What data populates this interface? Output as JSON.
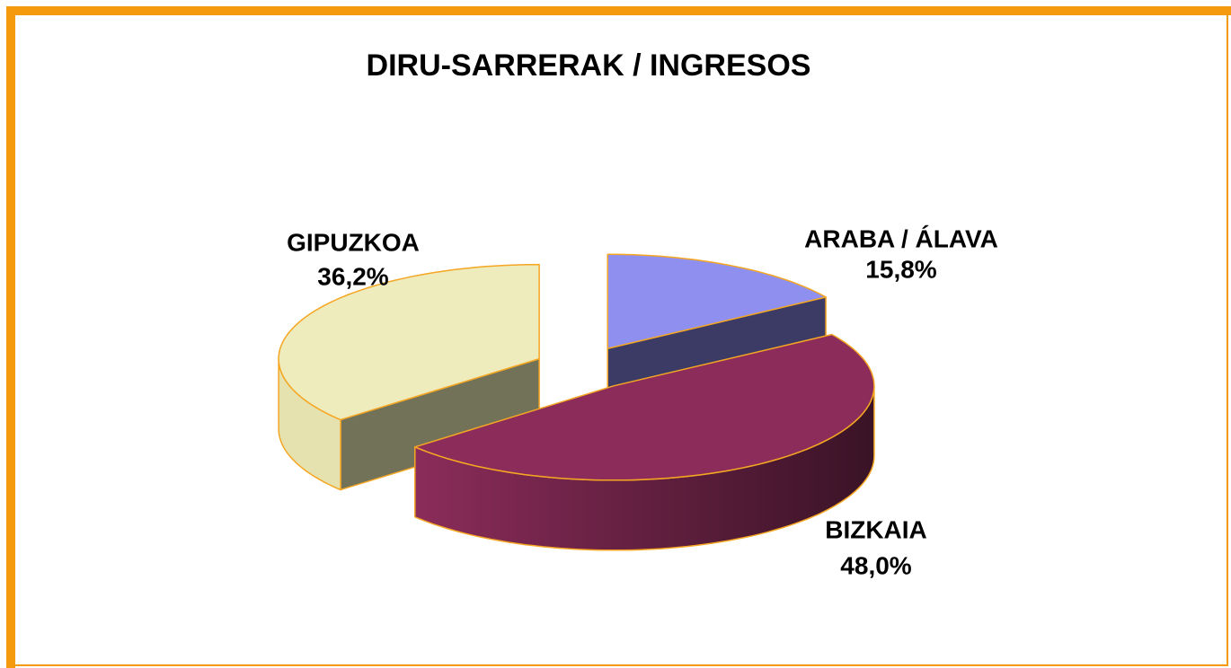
{
  "chart_data": {
    "type": "pie",
    "title": "DIRU-SARRERAK / INGRESOS",
    "categories": [
      "ARABA / ÁLAVA",
      "BIZKAIA",
      "GIPUZKOA"
    ],
    "values": [
      15.8,
      48.0,
      36.2
    ],
    "value_labels": [
      "15,8%",
      "48,0%",
      "36,2%"
    ],
    "colors": [
      "#8f8fef",
      "#8b2c5a",
      "#eeebbd"
    ]
  }
}
